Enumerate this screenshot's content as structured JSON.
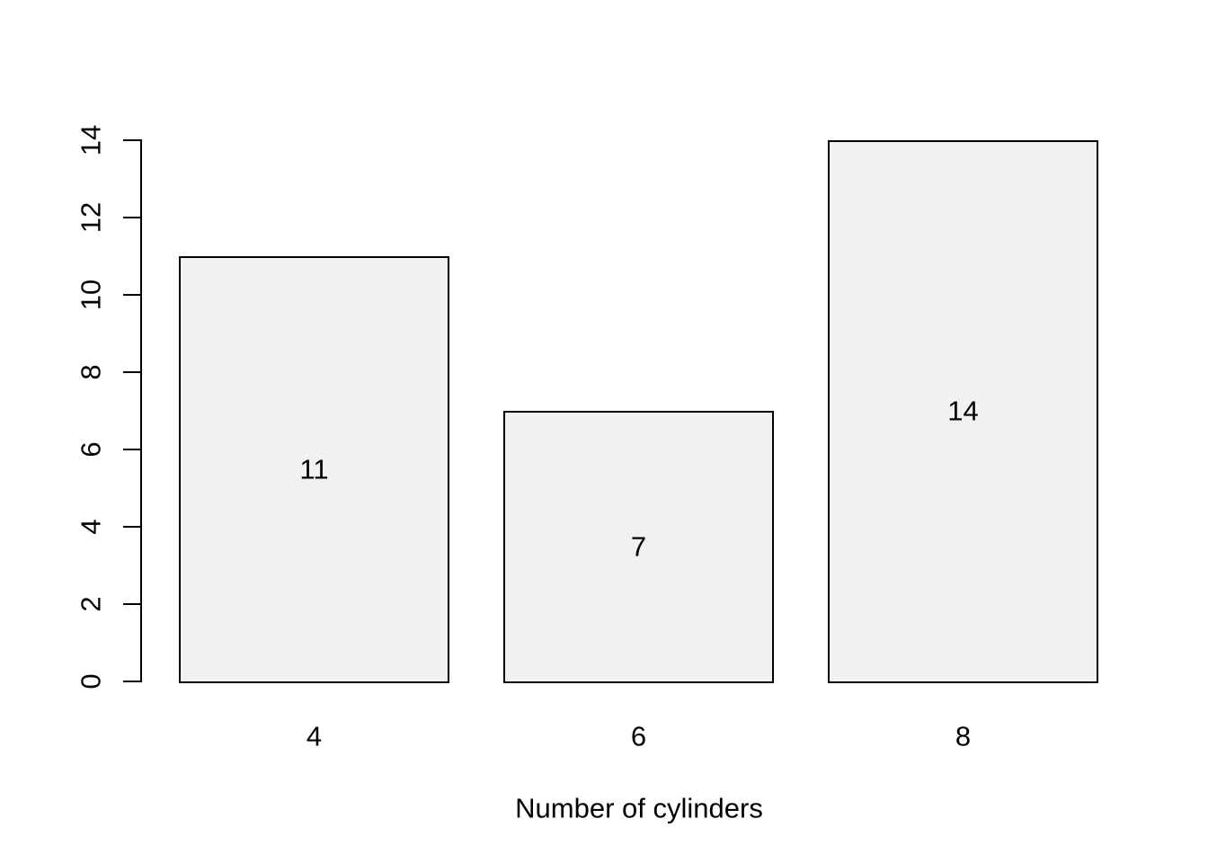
{
  "chart_data": {
    "type": "bar",
    "title": "",
    "xlabel": "Number of cylinders",
    "ylabel": "",
    "categories": [
      "4",
      "6",
      "8"
    ],
    "values": [
      11,
      7,
      14
    ],
    "bar_value_labels": [
      "11",
      "7",
      "14"
    ],
    "ylim": [
      0,
      14
    ],
    "yticks": [
      0,
      2,
      4,
      6,
      8,
      10,
      12,
      14
    ],
    "grid": false,
    "legend_position": "none",
    "colors": {
      "bar_fill": "#f1f1f1",
      "bar_border": "#000000",
      "axis": "#000000",
      "text": "#000000",
      "background": "#ffffff"
    }
  }
}
